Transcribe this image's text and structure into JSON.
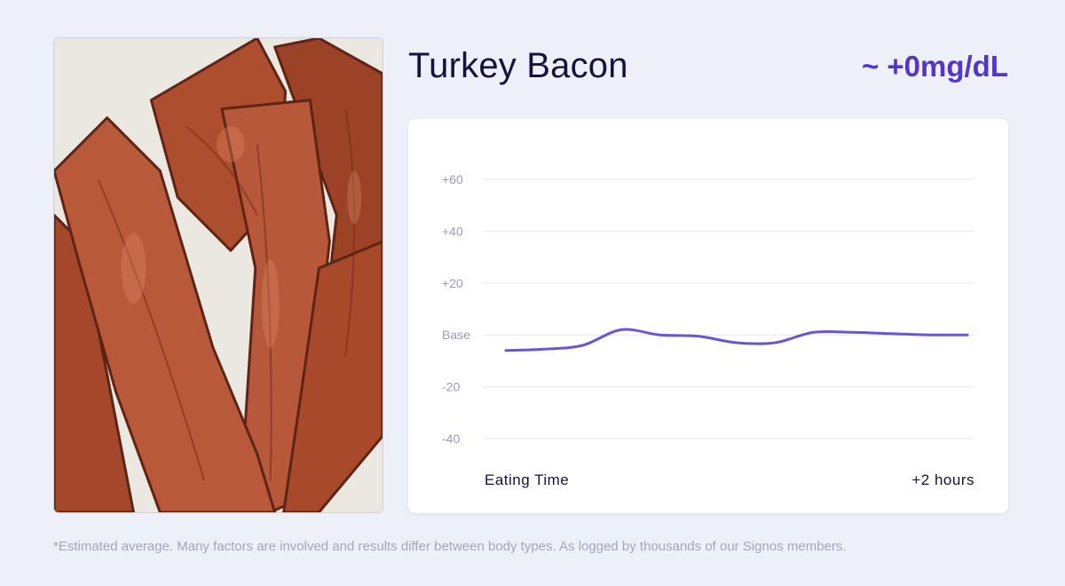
{
  "food": {
    "name": "Turkey Bacon",
    "delta": "~ +0mg/dL",
    "image_alt": "turkey bacon strips on a plate"
  },
  "chart_data": {
    "type": "line",
    "ylabel": "",
    "xlabel": "",
    "y_tick_labels": [
      "+60",
      "+40",
      "+20",
      "Base",
      "-20",
      "-40"
    ],
    "y_ticks": [
      60,
      40,
      20,
      0,
      -20,
      -40
    ],
    "ylim": [
      -40,
      60
    ],
    "x_tick_labels": [
      "Eating Time",
      "+2 hours"
    ],
    "x": [
      0,
      10,
      20,
      30,
      40,
      50,
      60,
      70,
      80,
      90,
      100,
      110,
      120
    ],
    "series": [
      {
        "color": "#6b55d6",
        "values": [
          -6,
          -5.5,
          -4,
          2,
          0,
          -0.5,
          -3,
          -3,
          1,
          1,
          0.5,
          0,
          0
        ]
      }
    ],
    "grid": true,
    "legend": "none"
  },
  "footnote": "*Estimated average. Many factors are involved and results differ between body types. As logged by thousands of our Signos members."
}
